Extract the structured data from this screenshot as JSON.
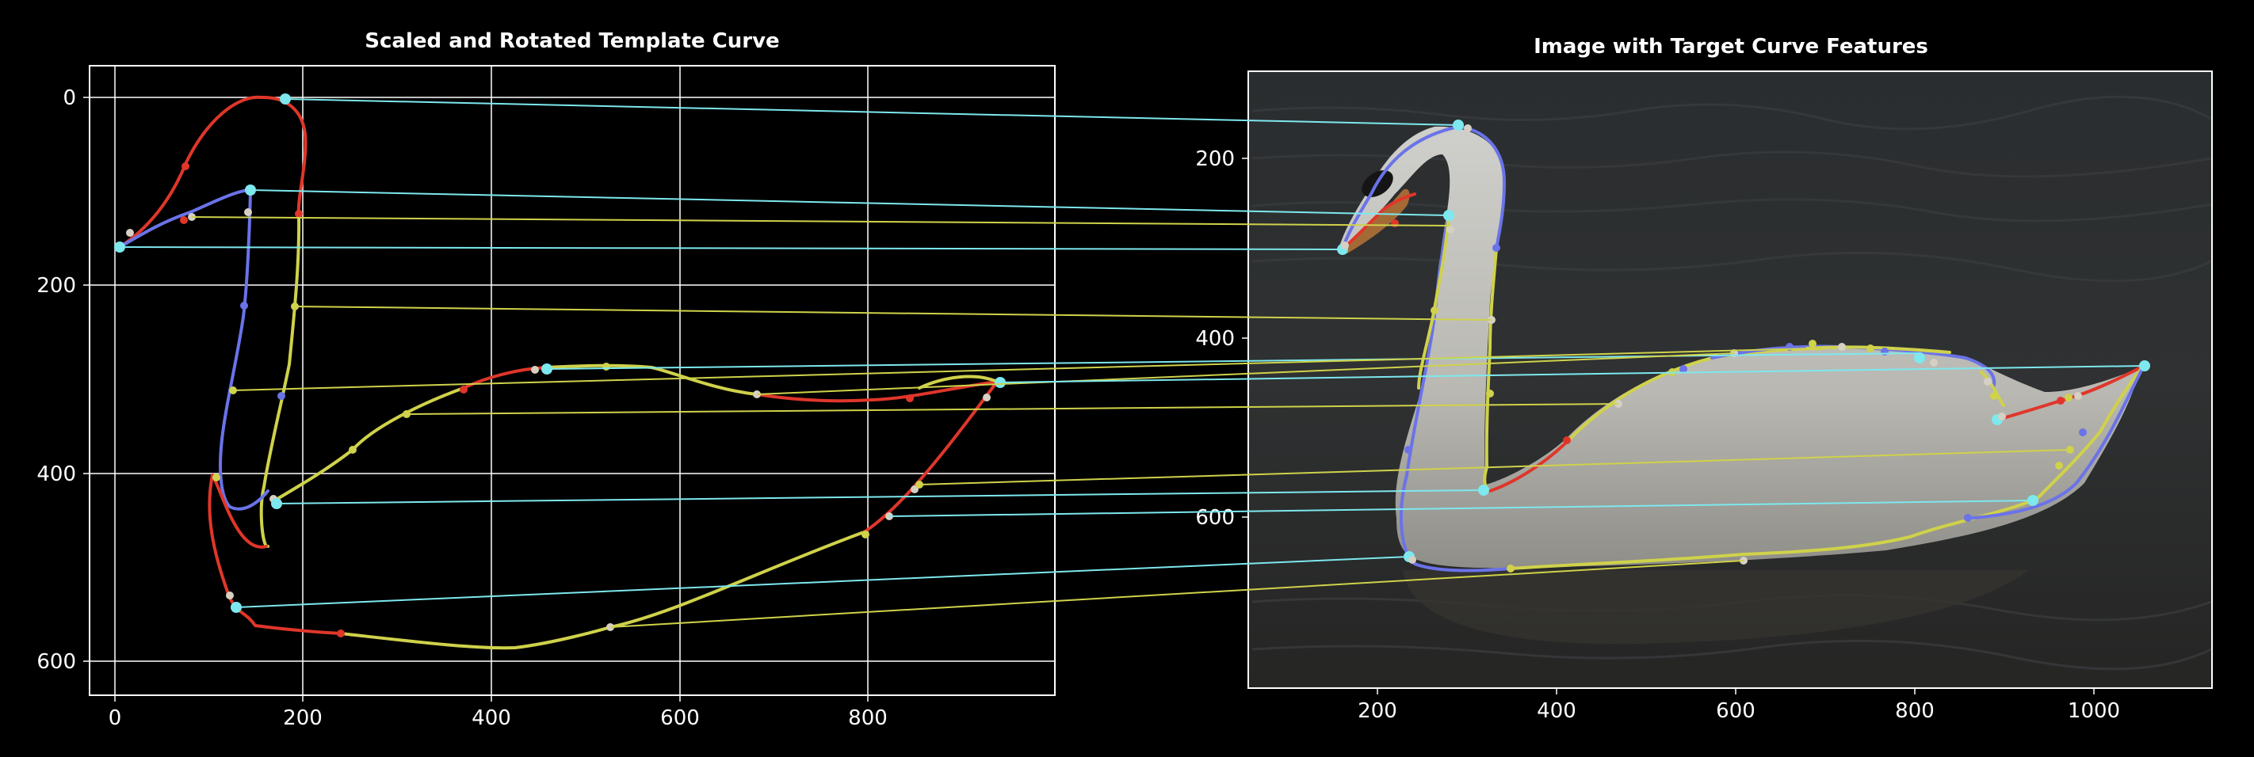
{
  "left_panel": {
    "title": "Scaled and Rotated Template Curve",
    "x_ticks": [
      "0",
      "200",
      "400",
      "600",
      "800"
    ],
    "y_ticks": [
      "0",
      "200",
      "400",
      "600"
    ]
  },
  "right_panel": {
    "title": "Image with Target Curve Features",
    "x_ticks": [
      "200",
      "400",
      "600",
      "800",
      "1000"
    ],
    "y_ticks": [
      "200",
      "400",
      "600"
    ]
  },
  "colors": {
    "red": "#e0362a",
    "yellow": "#cfd24a",
    "blue": "#6a73e8",
    "cyan": "#7de8ee",
    "light": "#d6d0c4"
  }
}
